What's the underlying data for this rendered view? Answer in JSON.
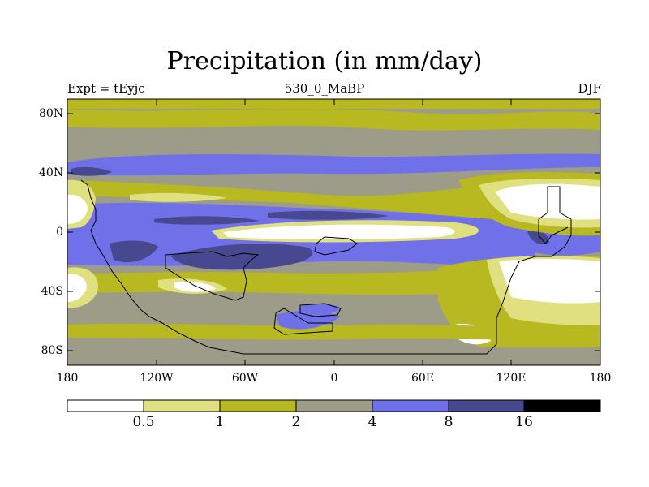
{
  "title": "Precipitation (in mm/day)",
  "subtitle_left": "Expt = tEyjc",
  "subtitle_center": "530_0_MaBP",
  "subtitle_right": "DJF",
  "lat_labels": [
    "80N",
    "40N",
    "0",
    "40S",
    "80S"
  ],
  "lon_labels": [
    "180",
    "120W",
    "60W",
    "0",
    "60E",
    "120E",
    "180"
  ],
  "colorbar": {
    "labels": [
      "0.5",
      "1",
      "2",
      "4",
      "8",
      "16"
    ],
    "colors": [
      "#ffffff",
      "#e0e080",
      "#b8b820",
      "#9c9c88",
      "#7070e8",
      "#484890",
      "#000000"
    ]
  },
  "map_data": {
    "type": "contour-map",
    "variable": "Precipitation",
    "units": "mm/day",
    "season": "DJF",
    "levels": [
      0.5,
      1,
      2,
      4,
      8,
      16
    ],
    "lat_range": [
      -90,
      90
    ],
    "lon_range": [
      -180,
      180
    ]
  }
}
